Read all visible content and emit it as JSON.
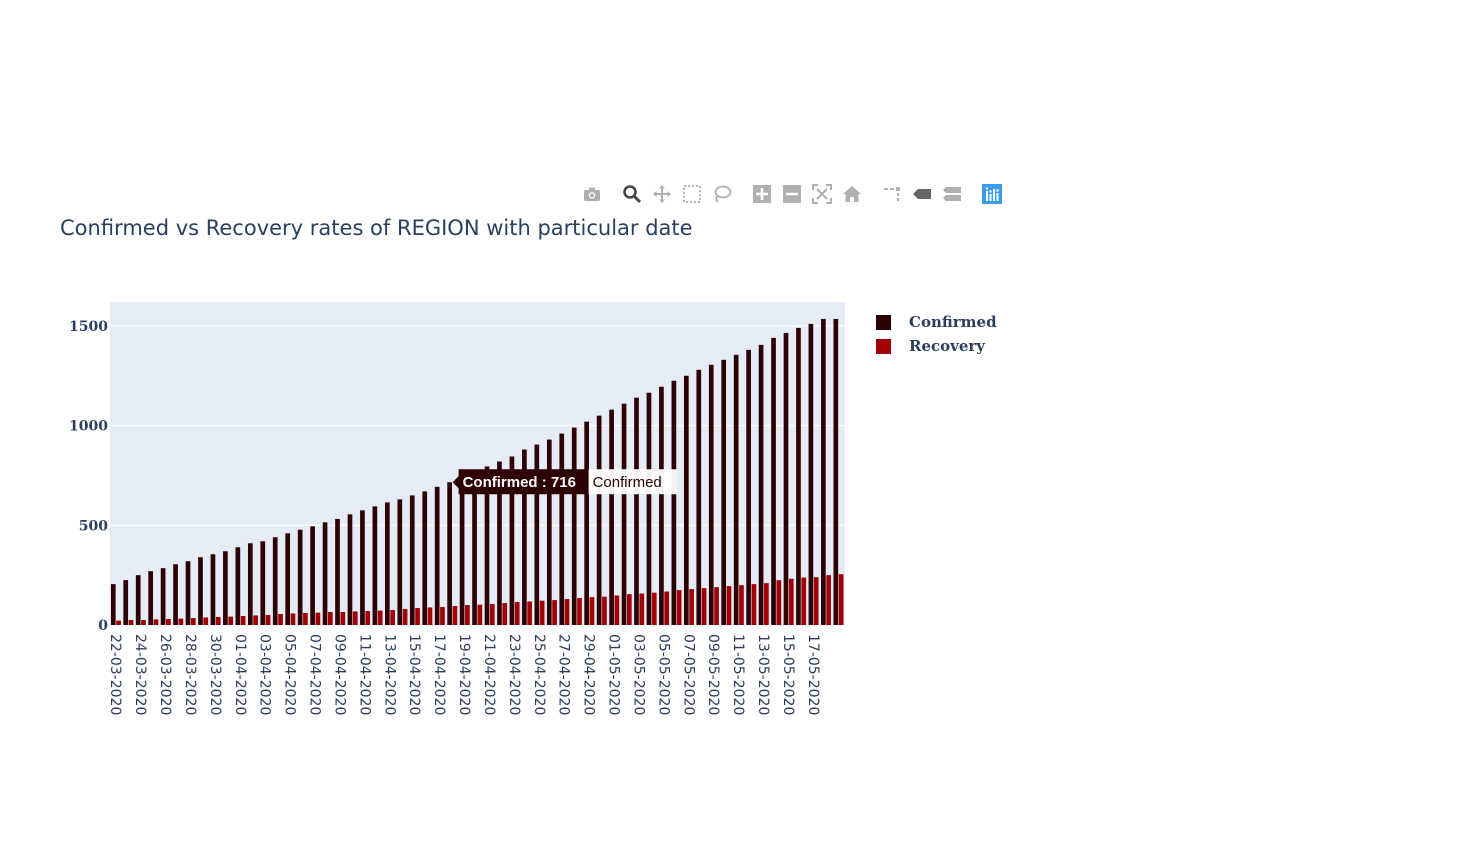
{
  "title": "Confirmed vs Recovery rates of REGION with particular date",
  "modebar": {
    "icons": [
      "camera-icon",
      "zoom-icon",
      "pan-icon",
      "box-select-icon",
      "lasso-icon",
      "zoom-in-icon",
      "zoom-out-icon",
      "autoscale-icon",
      "reset-axes-icon",
      "spike-lines-icon",
      "hover-closest-icon",
      "hover-compare-icon",
      "plotly-logo-icon"
    ],
    "active_color": "#444444",
    "inactive_color": "#b0b0b0",
    "logo_color": "#3b9de9"
  },
  "legend": {
    "placement": "right",
    "items": [
      {
        "label": "Confirmed",
        "color": "#2d0004"
      },
      {
        "label": "Recovery",
        "color": "#a10005"
      }
    ]
  },
  "tooltip": {
    "text": "Confirmed : 716",
    "series_name": "Confirmed",
    "date": "18-04-2020"
  },
  "chart_data": {
    "type": "bar",
    "barmode": "group",
    "grid": true,
    "plot_bgcolor": "#e5ecf6",
    "ylim": [
      0,
      1620
    ],
    "yticks": [
      0,
      500,
      1000,
      1500
    ],
    "xlabel": "",
    "ylabel": "",
    "x": [
      "22-03-2020",
      "23-03-2020",
      "24-03-2020",
      "25-03-2020",
      "26-03-2020",
      "27-03-2020",
      "28-03-2020",
      "29-03-2020",
      "30-03-2020",
      "31-03-2020",
      "01-04-2020",
      "02-04-2020",
      "03-04-2020",
      "04-04-2020",
      "05-04-2020",
      "06-04-2020",
      "07-04-2020",
      "08-04-2020",
      "09-04-2020",
      "10-04-2020",
      "11-04-2020",
      "12-04-2020",
      "13-04-2020",
      "14-04-2020",
      "15-04-2020",
      "16-04-2020",
      "17-04-2020",
      "18-04-2020",
      "19-04-2020",
      "20-04-2020",
      "21-04-2020",
      "22-04-2020",
      "23-04-2020",
      "24-04-2020",
      "25-04-2020",
      "26-04-2020",
      "27-04-2020",
      "28-04-2020",
      "29-04-2020",
      "30-04-2020",
      "01-05-2020",
      "02-05-2020",
      "03-05-2020",
      "04-05-2020",
      "05-05-2020",
      "06-05-2020",
      "07-05-2020",
      "08-05-2020",
      "09-05-2020",
      "10-05-2020",
      "11-05-2020",
      "12-05-2020",
      "13-05-2020",
      "14-05-2020",
      "15-05-2020",
      "16-05-2020",
      "17-05-2020",
      "18-05-2020",
      "19-05-2020"
    ],
    "x_tick_labels": [
      "22-03-2020",
      "24-03-2020",
      "26-03-2020",
      "28-03-2020",
      "30-03-2020",
      "01-04-2020",
      "03-04-2020",
      "05-04-2020",
      "07-04-2020",
      "09-04-2020",
      "11-04-2020",
      "13-04-2020",
      "15-04-2020",
      "17-04-2020",
      "19-04-2020",
      "21-04-2020",
      "23-04-2020",
      "25-04-2020",
      "27-04-2020",
      "29-04-2020",
      "01-05-2020",
      "03-05-2020",
      "05-05-2020",
      "07-05-2020",
      "09-05-2020",
      "11-05-2020",
      "13-05-2020",
      "15-05-2020",
      "17-05-2020"
    ],
    "series": [
      {
        "name": "Confirmed",
        "color": "#2d0004",
        "values": [
          205,
          225,
          250,
          270,
          285,
          305,
          320,
          340,
          355,
          370,
          390,
          410,
          420,
          440,
          460,
          478,
          495,
          515,
          532,
          555,
          575,
          595,
          615,
          630,
          650,
          670,
          693,
          716,
          740,
          770,
          795,
          820,
          845,
          880,
          905,
          930,
          960,
          990,
          1020,
          1050,
          1080,
          1110,
          1140,
          1165,
          1195,
          1225,
          1250,
          1280,
          1305,
          1330,
          1355,
          1380,
          1405,
          1440,
          1465,
          1490,
          1510,
          1535,
          1535
        ]
      },
      {
        "name": "Recovery",
        "color": "#a10005",
        "values": [
          22,
          25,
          25,
          28,
          30,
          32,
          35,
          38,
          40,
          42,
          45,
          48,
          50,
          55,
          58,
          60,
          62,
          65,
          65,
          68,
          70,
          72,
          75,
          80,
          85,
          88,
          90,
          95,
          100,
          102,
          105,
          110,
          115,
          118,
          122,
          125,
          130,
          135,
          140,
          142,
          148,
          155,
          158,
          162,
          168,
          175,
          180,
          185,
          190,
          195,
          200,
          205,
          210,
          225,
          232,
          238,
          240,
          250,
          255
        ]
      }
    ]
  }
}
